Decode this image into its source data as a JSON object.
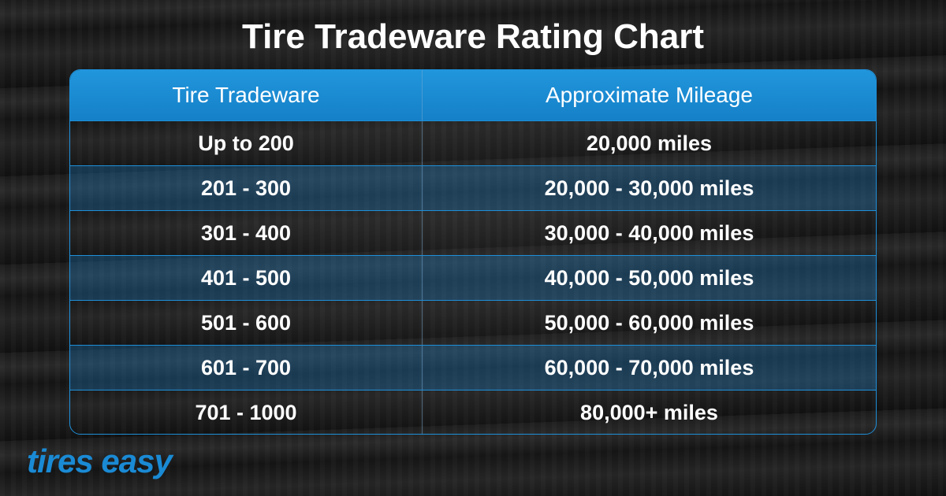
{
  "header": {
    "title": "Tire Tradeware Rating Chart"
  },
  "table": {
    "headers": [
      "Tire Tradeware",
      "Approximate Mileage"
    ],
    "rows": [
      [
        "Up to 200",
        "20,000 miles"
      ],
      [
        "201 - 300",
        "20,000 - 30,000 miles"
      ],
      [
        "301 - 400",
        "30,000 - 40,000 miles"
      ],
      [
        "401 - 500",
        "40,000 - 50,000 miles"
      ],
      [
        "501 - 600",
        "50,000 - 60,000 miles"
      ],
      [
        "601 - 700",
        "60,000 - 70,000 miles"
      ],
      [
        "701 - 1000",
        "80,000+ miles"
      ]
    ]
  },
  "footer": {
    "logo": "tires easy"
  }
}
